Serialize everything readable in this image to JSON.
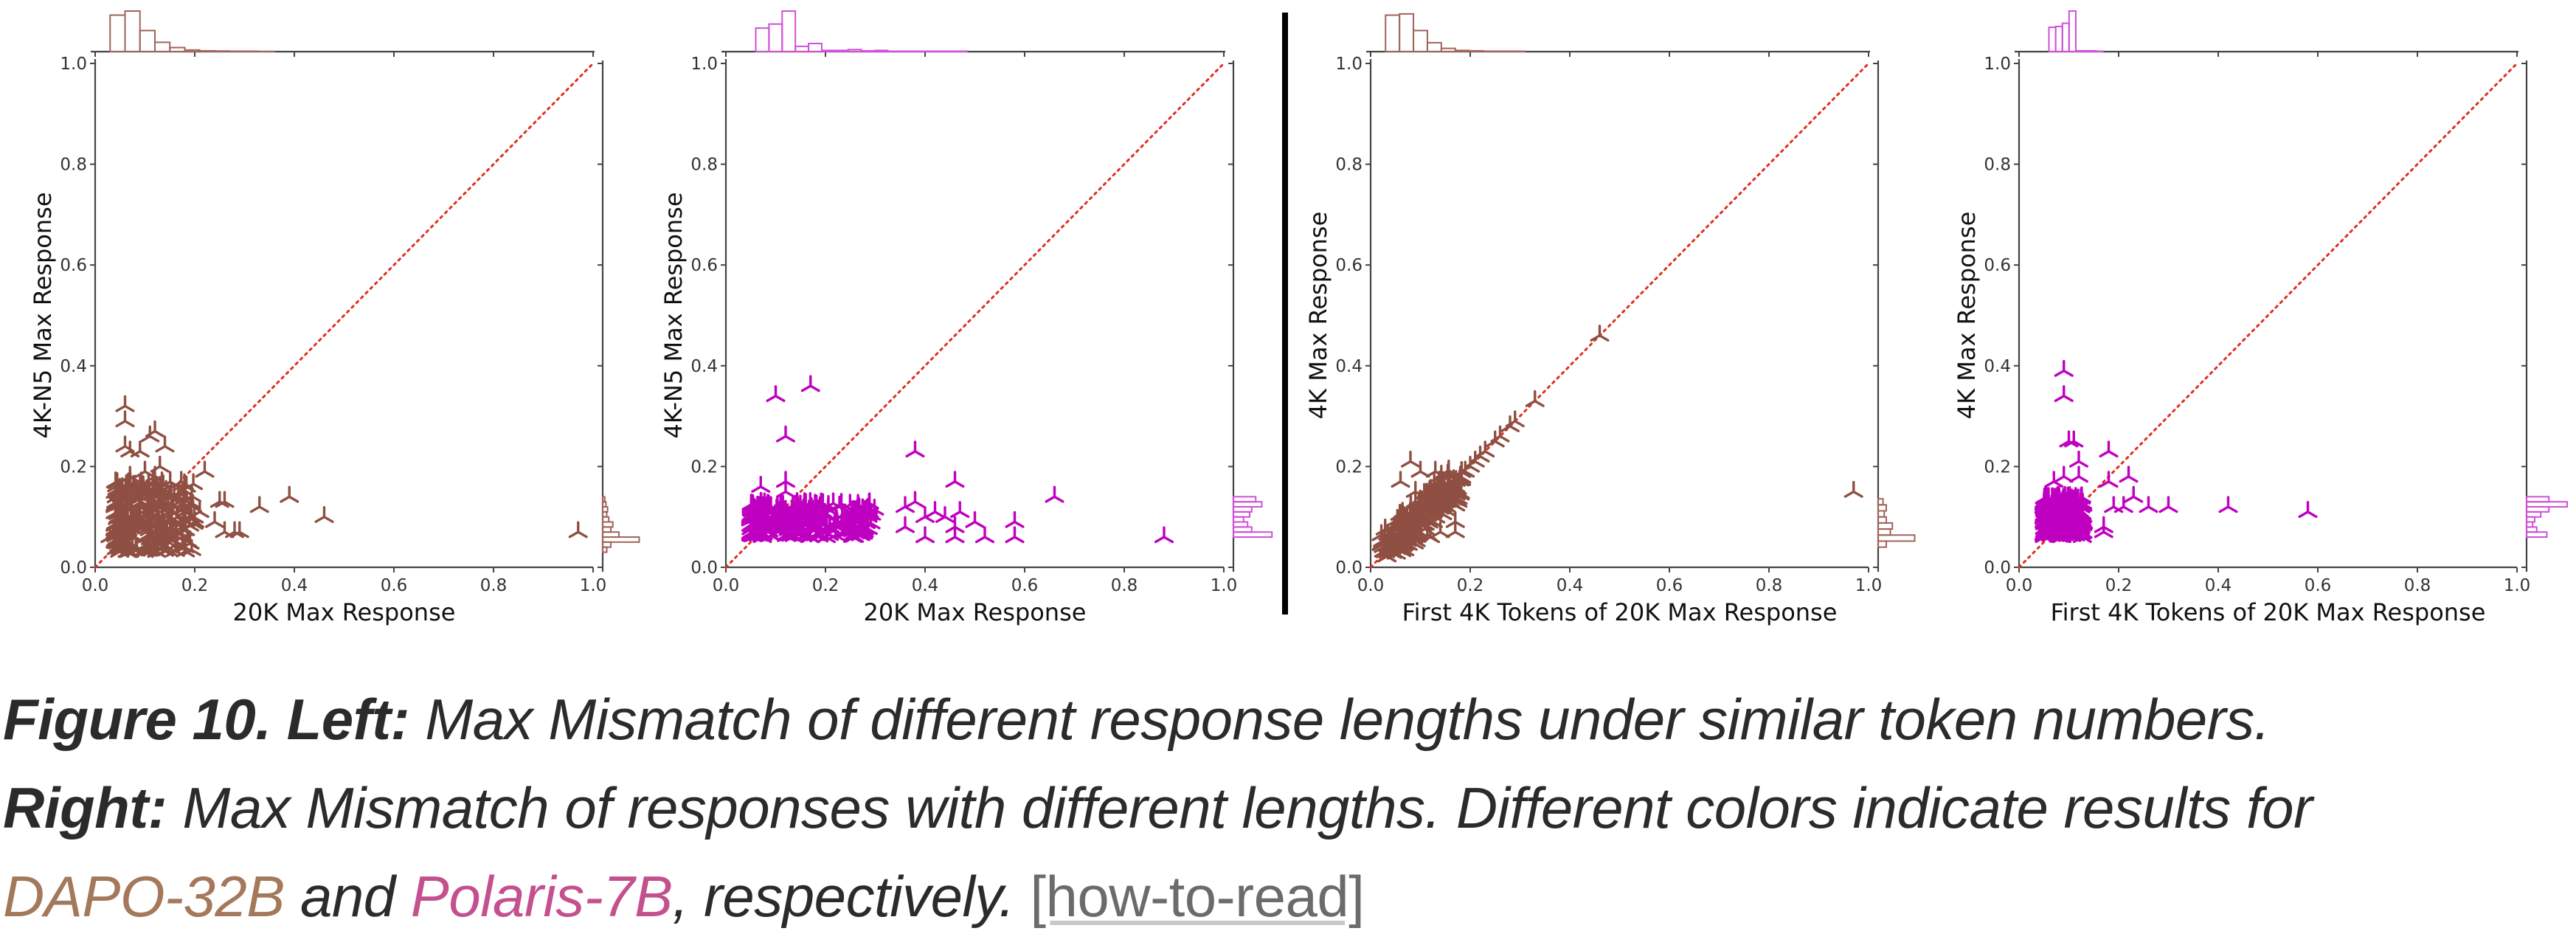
{
  "figure": {
    "caption": {
      "line1_bold": "Figure 10. Left:",
      "line1_text": " Max Mismatch of different response lengths under similar token numbers.",
      "line2_bold": "Right:",
      "line2_text": " Max Mismatch of responses with different lengths. Different colors indicate results for",
      "model_a": "DAPO-32B",
      "and_text": " and ",
      "model_b": "Polaris-7B",
      "line3_text": ", respectively. ",
      "link_label": "[how-to-read]"
    },
    "colors": {
      "dapo_scatter": "#8f4f42",
      "polaris_scatter": "#c000c0",
      "dapo_hist": "#a0635a",
      "polaris_hist": "#d050d8",
      "diagonal": "#e03020",
      "axis": "#444444",
      "caption_dapo": "#a4785a",
      "caption_polaris": "#c4508e",
      "link": "#6b6b6b"
    }
  },
  "chart_data": [
    {
      "type": "scatter",
      "panel": "left-1",
      "model": "DAPO-32B",
      "xlabel": "20K Max Response",
      "ylabel": "4K-N5 Max Response",
      "xlim": [
        0,
        1
      ],
      "ylim": [
        0,
        1
      ],
      "xticks": [
        "0.0",
        "0.2",
        "0.4",
        "0.6",
        "0.8",
        "1.0"
      ],
      "yticks": [
        "0.0",
        "0.2",
        "0.4",
        "0.6",
        "0.8",
        "1.0"
      ],
      "diagonal": "y = x (dotted)",
      "marginal_histograms": true,
      "outliers": [
        [
          0.39,
          0.14
        ],
        [
          0.46,
          0.1
        ],
        [
          0.33,
          0.12
        ],
        [
          0.97,
          0.07
        ],
        [
          0.22,
          0.19
        ],
        [
          0.25,
          0.13
        ],
        [
          0.26,
          0.13
        ],
        [
          0.24,
          0.09
        ],
        [
          0.26,
          0.07
        ],
        [
          0.28,
          0.07
        ],
        [
          0.29,
          0.07
        ],
        [
          0.06,
          0.32
        ],
        [
          0.06,
          0.29
        ],
        [
          0.12,
          0.27
        ],
        [
          0.11,
          0.26
        ],
        [
          0.06,
          0.24
        ],
        [
          0.14,
          0.24
        ],
        [
          0.09,
          0.23
        ],
        [
          0.07,
          0.23
        ],
        [
          0.13,
          0.2
        ],
        [
          0.1,
          0.19
        ],
        [
          0.12,
          0.18
        ],
        [
          0.07,
          0.18
        ],
        [
          0.03,
          0.06
        ],
        [
          0.18,
          0.11
        ],
        [
          0.18,
          0.04
        ],
        [
          0.2,
          0.09
        ],
        [
          0.21,
          0.11
        ]
      ],
      "cluster": {
        "x_range": [
          0.04,
          0.2
        ],
        "y_range": [
          0.03,
          0.17
        ],
        "count": 300
      },
      "hist_x": {
        "bin_width": 0.03,
        "start": 0.03,
        "counts": [
          0.9,
          1.0,
          0.52,
          0.23,
          0.1,
          0.04,
          0.02,
          0.015,
          0.01,
          0.01,
          0.005
        ]
      },
      "hist_y": {
        "bin_width": 0.01,
        "start": 0.03,
        "counts": [
          0.1,
          0.2,
          0.9,
          0.4,
          0.2,
          0.25,
          0.15,
          0.1,
          0.12,
          0.08,
          0.05
        ]
      }
    },
    {
      "type": "scatter",
      "panel": "left-2",
      "model": "Polaris-7B",
      "xlabel": "20K Max Response",
      "ylabel": "4K-N5 Max Response",
      "xlim": [
        0,
        1
      ],
      "ylim": [
        0,
        1
      ],
      "xticks": [
        "0.0",
        "0.2",
        "0.4",
        "0.6",
        "0.8",
        "1.0"
      ],
      "yticks": [
        "0.0",
        "0.2",
        "0.4",
        "0.6",
        "0.8",
        "1.0"
      ],
      "diagonal": "y = x (dotted)",
      "marginal_histograms": true,
      "outliers": [
        [
          0.17,
          0.36
        ],
        [
          0.1,
          0.34
        ],
        [
          0.12,
          0.26
        ],
        [
          0.38,
          0.23
        ],
        [
          0.46,
          0.17
        ],
        [
          0.66,
          0.14
        ],
        [
          0.12,
          0.17
        ],
        [
          0.07,
          0.16
        ],
        [
          0.12,
          0.15
        ],
        [
          0.38,
          0.13
        ],
        [
          0.36,
          0.12
        ],
        [
          0.42,
          0.11
        ],
        [
          0.47,
          0.11
        ],
        [
          0.4,
          0.1
        ],
        [
          0.58,
          0.09
        ],
        [
          0.88,
          0.06
        ],
        [
          0.52,
          0.06
        ],
        [
          0.46,
          0.06
        ],
        [
          0.4,
          0.06
        ],
        [
          0.58,
          0.06
        ],
        [
          0.36,
          0.08
        ],
        [
          0.46,
          0.08
        ],
        [
          0.44,
          0.1
        ],
        [
          0.5,
          0.09
        ]
      ],
      "cluster": {
        "x_range": [
          0.05,
          0.3
        ],
        "y_range": [
          0.06,
          0.13
        ],
        "count": 320
      },
      "hist_x": {
        "bin_width": 0.0265,
        "start": 0.06,
        "counts": [
          0.58,
          0.68,
          1.0,
          0.13,
          0.2,
          0.03,
          0.03,
          0.05,
          0.02,
          0.03,
          0.01,
          0.01,
          0.01,
          0.01,
          0.01,
          0.01
        ]
      },
      "hist_y": {
        "bin_width": 0.01,
        "start": 0.06,
        "counts": [
          0.95,
          0.45,
          0.35,
          0.25,
          0.4,
          0.45,
          0.7,
          0.55
        ]
      }
    },
    {
      "type": "scatter",
      "panel": "right-1",
      "model": "DAPO-32B",
      "xlabel": "First 4K Tokens of 20K Max Response",
      "ylabel": "4K Max Response",
      "xlim": [
        0,
        1
      ],
      "ylim": [
        0,
        1
      ],
      "xticks": [
        "0.0",
        "0.2",
        "0.4",
        "0.6",
        "0.8",
        "1.0"
      ],
      "yticks": [
        "0.0",
        "0.2",
        "0.4",
        "0.6",
        "0.8",
        "1.0"
      ],
      "diagonal": "y = x (dotted)",
      "marginal_histograms": true,
      "outliers": [
        [
          0.46,
          0.46
        ],
        [
          0.33,
          0.33
        ],
        [
          0.29,
          0.29
        ],
        [
          0.28,
          0.28
        ],
        [
          0.26,
          0.26
        ],
        [
          0.25,
          0.25
        ],
        [
          0.23,
          0.23
        ],
        [
          0.22,
          0.22
        ],
        [
          0.21,
          0.21
        ],
        [
          0.2,
          0.2
        ],
        [
          0.19,
          0.19
        ],
        [
          0.18,
          0.18
        ],
        [
          0.97,
          0.15
        ],
        [
          0.08,
          0.21
        ],
        [
          0.1,
          0.19
        ],
        [
          0.13,
          0.19
        ],
        [
          0.06,
          0.17
        ],
        [
          0.09,
          0.15
        ],
        [
          0.09,
          0.13
        ],
        [
          0.17,
          0.07
        ],
        [
          0.17,
          0.09
        ],
        [
          0.14,
          0.07
        ],
        [
          0.12,
          0.06
        ],
        [
          0.03,
          0.03
        ],
        [
          0.04,
          0.04
        ]
      ],
      "cluster": {
        "x_range": [
          0.04,
          0.17
        ],
        "y_range": [
          0.04,
          0.17
        ],
        "count": 260,
        "mode": "diagonal"
      },
      "hist_x": {
        "bin_width": 0.028,
        "start": 0.03,
        "counts": [
          0.9,
          0.93,
          0.52,
          0.22,
          0.08,
          0.03,
          0.02,
          0.01,
          0.01,
          0.01
        ]
      },
      "hist_y": {
        "bin_width": 0.012,
        "start": 0.04,
        "counts": [
          0.2,
          0.9,
          0.3,
          0.35,
          0.2,
          0.15,
          0.2,
          0.12
        ]
      }
    },
    {
      "type": "scatter",
      "panel": "right-2",
      "model": "Polaris-7B",
      "xlabel": "First 4K Tokens of 20K Max Response",
      "ylabel": "4K Max Response",
      "xlim": [
        0,
        1
      ],
      "ylim": [
        0,
        1
      ],
      "xticks": [
        "0.0",
        "0.2",
        "0.4",
        "0.6",
        "0.8",
        "1.0"
      ],
      "yticks": [
        "0.0",
        "0.2",
        "0.4",
        "0.6",
        "0.8",
        "1.0"
      ],
      "diagonal": "y = x (dotted)",
      "marginal_histograms": true,
      "outliers": [
        [
          0.09,
          0.39
        ],
        [
          0.09,
          0.34
        ],
        [
          0.1,
          0.25
        ],
        [
          0.11,
          0.25
        ],
        [
          0.18,
          0.23
        ],
        [
          0.12,
          0.21
        ],
        [
          0.22,
          0.18
        ],
        [
          0.09,
          0.18
        ],
        [
          0.12,
          0.18
        ],
        [
          0.07,
          0.17
        ],
        [
          0.18,
          0.17
        ],
        [
          0.23,
          0.14
        ],
        [
          0.26,
          0.12
        ],
        [
          0.3,
          0.12
        ],
        [
          0.42,
          0.12
        ],
        [
          0.58,
          0.11
        ],
        [
          0.17,
          0.08
        ],
        [
          0.17,
          0.07
        ],
        [
          0.19,
          0.12
        ],
        [
          0.21,
          0.12
        ]
      ],
      "cluster": {
        "x_range": [
          0.05,
          0.13
        ],
        "y_range": [
          0.06,
          0.14
        ],
        "count": 260
      },
      "hist_x": {
        "bin_width": 0.0135,
        "start": 0.06,
        "counts": [
          0.6,
          0.62,
          0.7,
          1.0,
          0.02,
          0.02,
          0.02,
          0.01
        ]
      },
      "hist_y": {
        "bin_width": 0.01,
        "start": 0.06,
        "counts": [
          0.5,
          0.25,
          0.15,
          0.2,
          0.35,
          0.55,
          1.0,
          0.55
        ]
      }
    }
  ]
}
